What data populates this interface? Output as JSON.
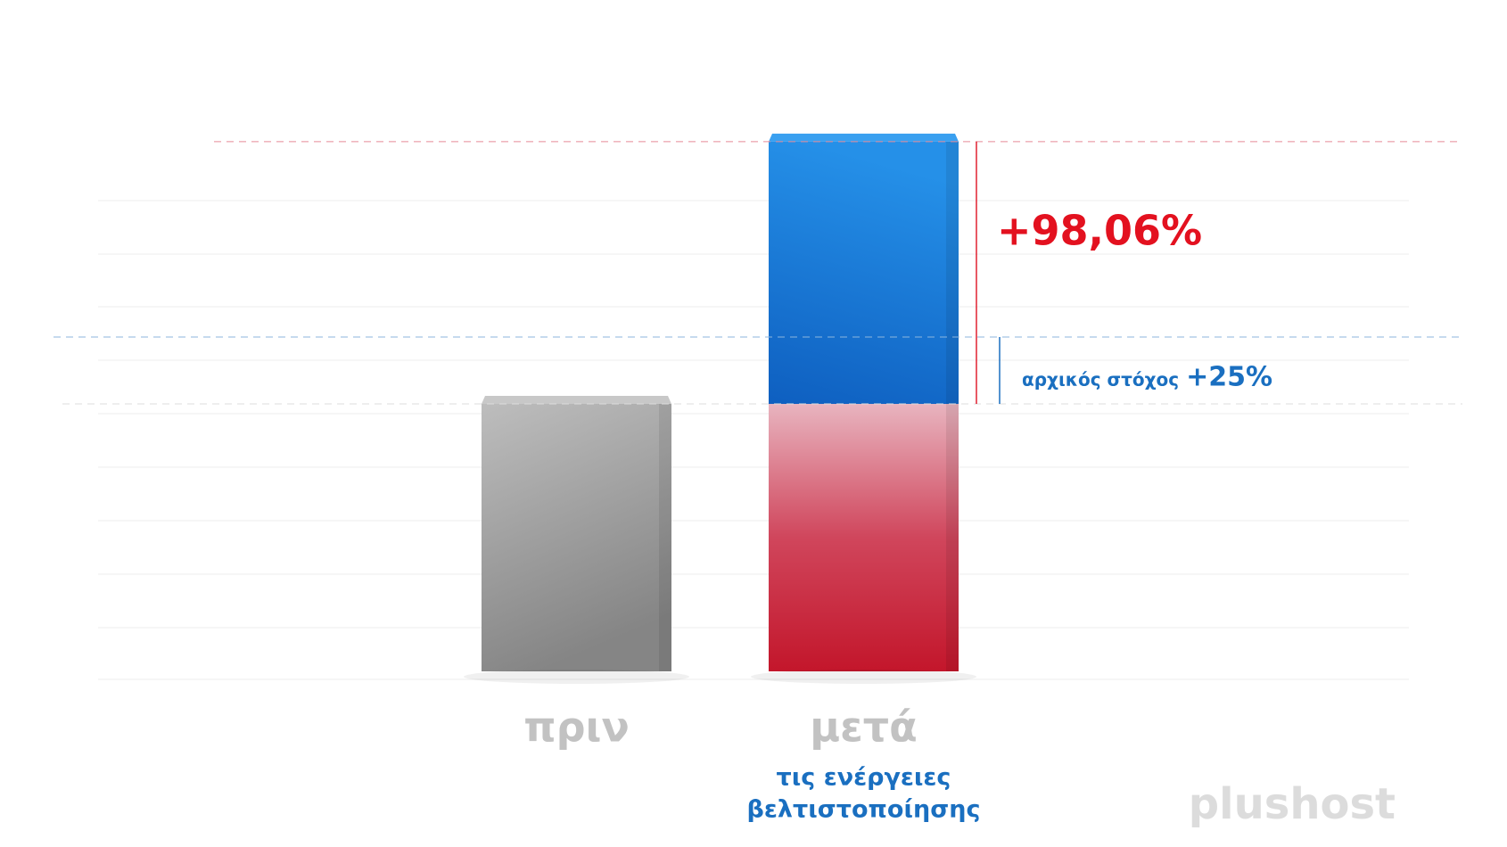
{
  "chart_data": {
    "type": "bar",
    "categories": [
      "πριν",
      "μετά"
    ],
    "annotation": [
      "τις ενέργειες",
      "βελτιστοποίησης"
    ],
    "series": [
      {
        "colors": [
          "#9a9a9a",
          "#d21f36"
        ],
        "values": [
          100,
          100
        ]
      },
      {
        "color": "#1e7fdc",
        "values": [
          null,
          98.06
        ],
        "value_labels": [
          null,
          "+98,06%"
        ]
      }
    ],
    "target": {
      "label": "αρχικός στόχος",
      "value": 25,
      "value_label": "+25%",
      "color": "#1a6fc0"
    },
    "ylim": [
      0,
      200
    ],
    "logo": "plushost"
  }
}
